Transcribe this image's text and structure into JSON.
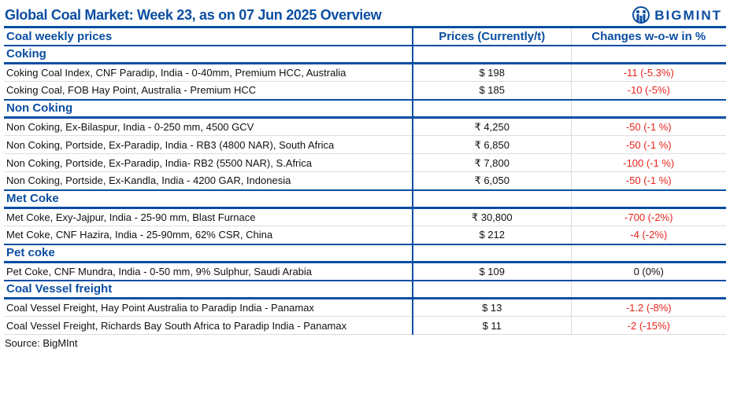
{
  "title": "Global Coal Market: Week 23, as on 07 Jun 2025 Overview",
  "logo": {
    "text": "BIGMINT",
    "icon": "bigmint-logo-icon"
  },
  "colors": {
    "brand": "#0b4ea2",
    "negative": "#e8241c"
  },
  "header": {
    "col1": "Coal weekly prices",
    "col2": "Prices (Currently/t)",
    "col3": "Changes w-o-w in %"
  },
  "sections": [
    {
      "name": "Coking",
      "rows": [
        {
          "item": "Coking Coal Index, CNF Paradip, India - 0-40mm, Premium HCC, Australia",
          "price": "$ 198",
          "change": "-11 (-5.3%)"
        },
        {
          "item": "Coking Coal, FOB Hay Point, Australia - Premium HCC",
          "price": "$ 185",
          "change": "-10 (-5%)"
        }
      ]
    },
    {
      "name": "Non Coking",
      "rows": [
        {
          "item": "Non Coking, Ex-Bilaspur, India - 0-250 mm, 4500 GCV",
          "price": "₹ 4,250",
          "change": "-50 (-1 %)"
        },
        {
          "item": "Non Coking, Portside, Ex-Paradip, India - RB3 (4800 NAR), South Africa",
          "price": "₹ 6,850",
          "change": "-50 (-1 %)"
        },
        {
          "item": "Non Coking, Portside, Ex-Paradip, India- RB2 (5500 NAR), S.Africa",
          "price": "₹ 7,800",
          "change": "-100 (-1 %)"
        },
        {
          "item": "Non Coking, Portside, Ex-Kandla, India - 4200 GAR, Indonesia",
          "price": "₹ 6,050",
          "change": "-50 (-1 %)"
        }
      ]
    },
    {
      "name": "Met Coke",
      "rows": [
        {
          "item": "Met Coke, Exy-Jajpur, India - 25-90 mm, Blast Furnace",
          "price": "₹ 30,800",
          "change": "-700 (-2%)"
        },
        {
          "item": "Met Coke, CNF Hazira, India - 25-90mm, 62% CSR, China",
          "price": "$ 212",
          "change": "-4 (-2%)"
        }
      ]
    },
    {
      "name": "Pet coke",
      "rows": [
        {
          "item": "Pet Coke, CNF Mundra, India - 0-50 mm, 9% Sulphur, Saudi Arabia",
          "price": "$ 109",
          "change": "0 (0%)"
        }
      ]
    },
    {
      "name": "Coal Vessel freight",
      "rows": [
        {
          "item": "Coal Vessel Freight, Hay Point Australia to Paradip India - Panamax",
          "price": "$ 13",
          "change": "-1.2 (-8%)"
        },
        {
          "item": "Coal Vessel Freight, Richards Bay South Africa to Paradip India - Panamax",
          "price": "$ 11",
          "change": "-2 (-15%)"
        }
      ]
    }
  ],
  "source": "Source: BigMInt"
}
